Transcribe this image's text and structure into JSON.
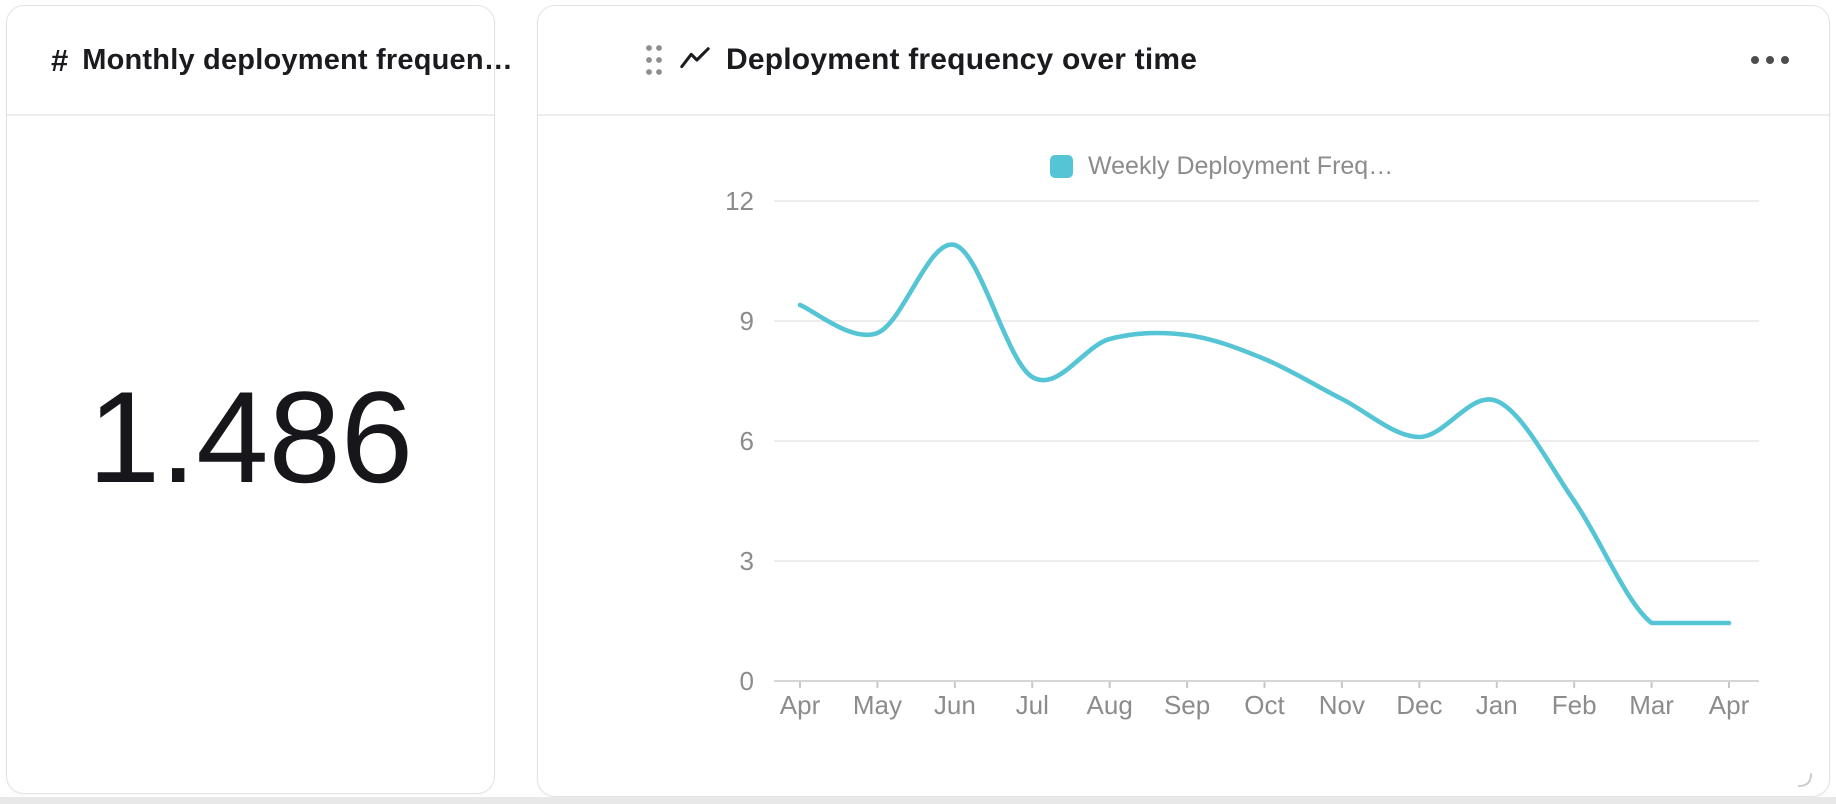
{
  "page": {
    "background": "#ffffff",
    "bottom_edge_color": "#e8e8e8"
  },
  "metric_card": {
    "icon_glyph": "#",
    "title": "Monthly deployment frequen…",
    "value": "1.486"
  },
  "chart_card": {
    "title": "Deployment frequency over time",
    "menu_icon": "ellipsis-menu",
    "drag_handle_icon": "six-dot-grid",
    "resize_icon": "corner-resize"
  },
  "chart_data": {
    "type": "line",
    "title": "Deployment frequency over time",
    "smooth": true,
    "grid": true,
    "legend_position": "top-center",
    "x_labels": [
      "Apr",
      "May",
      "Jun",
      "Jul",
      "Aug",
      "Sep",
      "Oct",
      "Nov",
      "Dec",
      "Jan",
      "Feb",
      "Mar",
      "Apr"
    ],
    "y_ticks": [
      0,
      3,
      6,
      9,
      12
    ],
    "ylim": [
      0,
      12
    ],
    "series": [
      {
        "name": "Weekly Deployment Freq…",
        "color": "#55c4d4",
        "values": [
          9.4,
          8.7,
          10.9,
          7.6,
          8.55,
          8.65,
          8.05,
          7.05,
          6.1,
          7.0,
          4.5,
          1.45,
          1.45
        ]
      }
    ],
    "colors": {
      "gridline": "#ededee",
      "axis_line": "#d6d6d8",
      "tick_mark": "#c8c8ca",
      "axis_label": "#8c8c8e"
    }
  }
}
